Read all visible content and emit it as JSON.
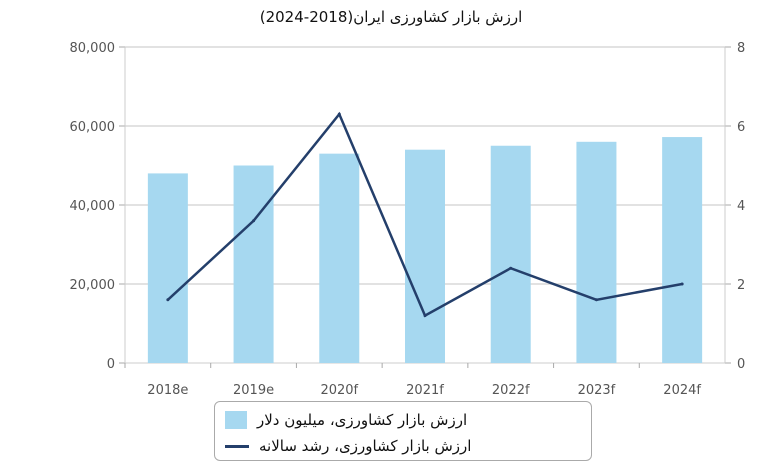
{
  "chart_data": {
    "type": "bar",
    "title": "ارزش بازار کشاورزی ایران(2018-2024)",
    "categories": [
      "2018e",
      "2019e",
      "2020f",
      "2021f",
      "2022f",
      "2023f",
      "2024f"
    ],
    "series": [
      {
        "name": "ارزش بازار کشاورزی، میلیون دلار",
        "type": "bar",
        "axis": "left",
        "values": [
          48000,
          50000,
          53000,
          54000,
          55000,
          56000,
          57200
        ]
      },
      {
        "name": "ارزش بازار کشاورزی، رشد سالانه",
        "type": "line",
        "axis": "right",
        "values": [
          1.6,
          3.6,
          6.3,
          1.2,
          2.4,
          1.6,
          2.0
        ]
      }
    ],
    "y_left": {
      "min": 0,
      "max": 80000,
      "ticks": [
        "0",
        "20,000",
        "40,000",
        "60,000",
        "80,000"
      ]
    },
    "y_right": {
      "min": 0,
      "max": 8,
      "ticks": [
        "0",
        "2",
        "4",
        "6",
        "8"
      ]
    },
    "grid": "horizontal",
    "legend_position": "bottom",
    "colors": {
      "bar": "#a6d8f0",
      "line": "#243f6b",
      "grid": "#d9d9d9"
    }
  }
}
